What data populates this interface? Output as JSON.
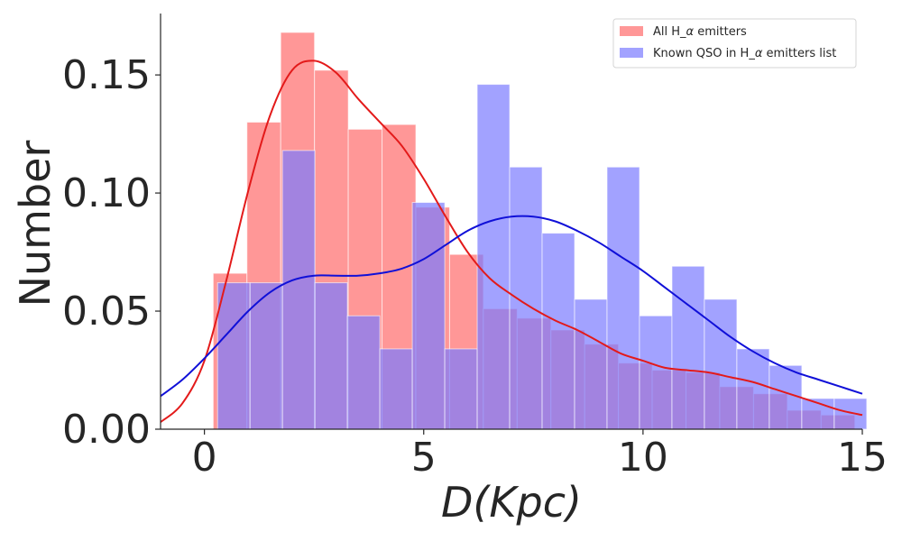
{
  "chart_data": {
    "type": "histogram",
    "title": "",
    "xlabel": "D(Kpc)",
    "ylabel": "Number",
    "xlim": [
      -1,
      15
    ],
    "ylim": [
      0,
      0.176
    ],
    "xticks": [
      0,
      5,
      10,
      15
    ],
    "yticks": [
      0.0,
      0.05,
      0.1,
      0.15
    ],
    "ytick_labels": [
      "0.00",
      "0.05",
      "0.10",
      "0.15"
    ],
    "grid": false,
    "legend_position": "top-right",
    "series": [
      {
        "name": "All H_α emitters",
        "legend_label": "All H_$\\alpha$ emitters",
        "color": "#ff6b6b",
        "kde_color": "#e31a1a",
        "bin_edges": [
          0.2,
          0.97,
          1.74,
          2.51,
          3.28,
          4.05,
          4.82,
          5.59,
          6.36,
          7.13,
          7.9,
          8.67,
          9.44,
          10.21,
          10.98,
          11.75,
          12.52,
          13.29,
          14.06,
          14.83
        ],
        "values": [
          0.066,
          0.13,
          0.168,
          0.152,
          0.127,
          0.129,
          0.094,
          0.074,
          0.051,
          0.047,
          0.042,
          0.036,
          0.028,
          0.025,
          0.024,
          0.018,
          0.015,
          0.008,
          0.006
        ],
        "kde": {
          "x": [
            -1,
            -0.5,
            0,
            0.5,
            1,
            1.5,
            2,
            2.5,
            3,
            3.5,
            4,
            4.5,
            5,
            5.5,
            6,
            6.5,
            7,
            7.5,
            8,
            8.5,
            9,
            9.5,
            10,
            10.5,
            11,
            11.5,
            12,
            12.5,
            13,
            13.5,
            14,
            14.5,
            15
          ],
          "y": [
            0.003,
            0.011,
            0.029,
            0.063,
            0.101,
            0.133,
            0.152,
            0.156,
            0.151,
            0.14,
            0.13,
            0.12,
            0.106,
            0.09,
            0.075,
            0.064,
            0.057,
            0.051,
            0.046,
            0.042,
            0.037,
            0.032,
            0.029,
            0.026,
            0.025,
            0.024,
            0.022,
            0.02,
            0.017,
            0.014,
            0.011,
            0.008,
            0.006
          ]
        }
      },
      {
        "name": "Known QSO in H_α emitters list",
        "legend_label": "Known QSO in H_$\\alpha$ emitters list",
        "color": "#7b7bff",
        "kde_color": "#1010d8",
        "bin_edges": [
          0.3,
          1.04,
          1.78,
          2.52,
          3.26,
          4.0,
          4.74,
          5.48,
          6.22,
          6.96,
          7.7,
          8.44,
          9.18,
          9.92,
          10.66,
          11.4,
          12.14,
          12.88,
          13.62,
          14.36,
          15.1
        ],
        "values": [
          0.062,
          0.062,
          0.118,
          0.062,
          0.048,
          0.034,
          0.096,
          0.034,
          0.146,
          0.111,
          0.083,
          0.055,
          0.111,
          0.048,
          0.069,
          0.055,
          0.034,
          0.027,
          0.013,
          0.013
        ],
        "kde": {
          "x": [
            -1,
            -0.5,
            0,
            0.5,
            1,
            1.5,
            2,
            2.5,
            3,
            3.5,
            4,
            4.5,
            5,
            5.5,
            6,
            6.5,
            7,
            7.5,
            8,
            8.5,
            9,
            9.5,
            10,
            10.5,
            11,
            11.5,
            12,
            12.5,
            13,
            13.5,
            14,
            14.5,
            15
          ],
          "y": [
            0.014,
            0.021,
            0.03,
            0.04,
            0.05,
            0.058,
            0.063,
            0.065,
            0.065,
            0.065,
            0.066,
            0.068,
            0.072,
            0.078,
            0.084,
            0.088,
            0.09,
            0.09,
            0.088,
            0.084,
            0.079,
            0.073,
            0.067,
            0.06,
            0.053,
            0.046,
            0.039,
            0.033,
            0.028,
            0.024,
            0.021,
            0.018,
            0.015
          ]
        }
      }
    ]
  }
}
